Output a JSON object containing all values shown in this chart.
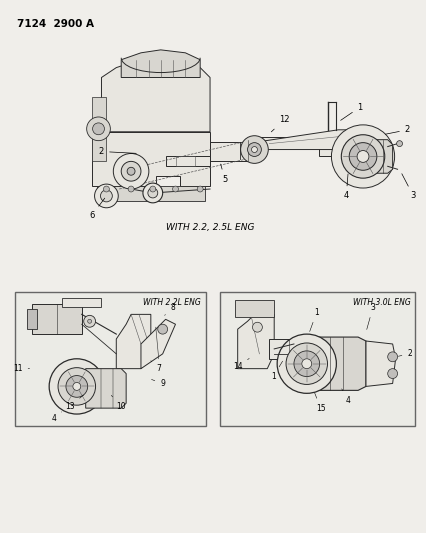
{
  "bg": "#f0eeea",
  "title": "7124  2900 A",
  "main_label": "WITH 2.2, 2.5L ENG",
  "left_label": "WITH 2.2L ENG",
  "right_label": "WITH 3.0L ENG",
  "line_color": "#2a2a2a",
  "fill_light": "#e8e6e0",
  "fill_mid": "#d8d6d0",
  "fill_dark": "#c0bebb"
}
